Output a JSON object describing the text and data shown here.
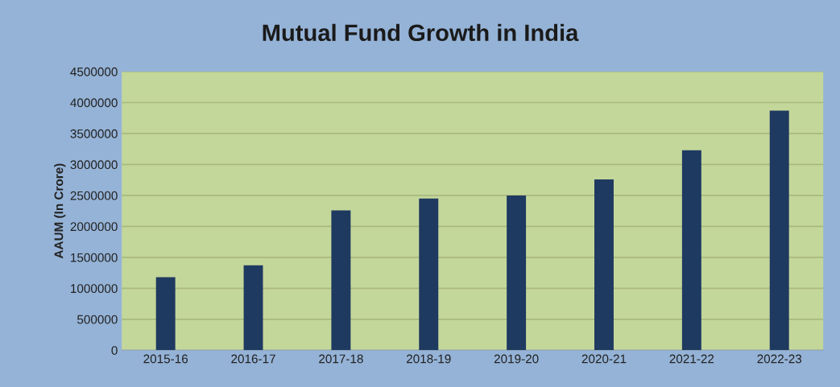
{
  "chart_data": {
    "type": "bar",
    "title": "Mutual Fund Growth in India",
    "ylabel": "AAUM (In Crore)",
    "categories": [
      "2015-16",
      "2016-17",
      "2017-18",
      "2018-19",
      "2019-20",
      "2020-21",
      "2021-22",
      "2022-23"
    ],
    "values": [
      1180000,
      1370000,
      2260000,
      2450000,
      2500000,
      2760000,
      3230000,
      3870000
    ],
    "color": "#1f3a60",
    "ylim": [
      0,
      4500000
    ],
    "yticks": [
      0,
      500000,
      1000000,
      1500000,
      2000000,
      2500000,
      3000000,
      3500000,
      4000000,
      4500000
    ],
    "grid": "y",
    "legend": false
  }
}
